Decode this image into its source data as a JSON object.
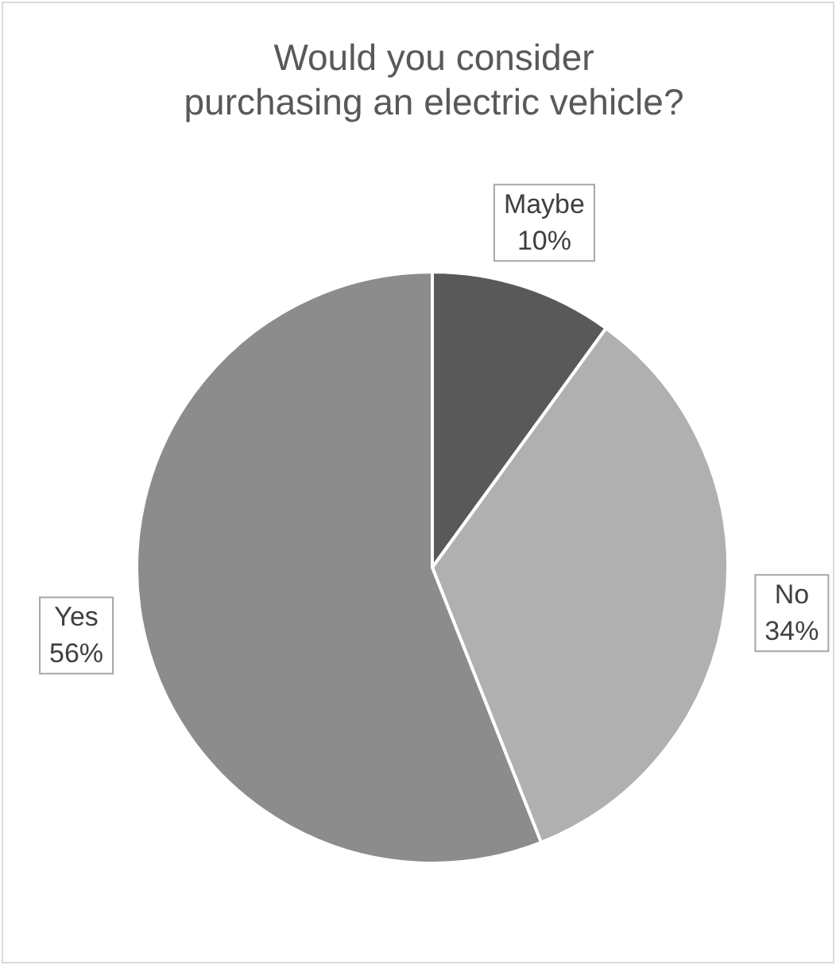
{
  "chart_data": {
    "type": "pie",
    "title": "Would you consider purchasing an electric vehicle?",
    "categories": [
      "Maybe",
      "No",
      "Yes"
    ],
    "values": [
      10,
      34,
      56
    ],
    "value_labels": [
      "10%",
      "34%",
      "56%"
    ],
    "colors": [
      "#595959",
      "#b0b0b0",
      "#8c8c8c"
    ],
    "legend": false
  }
}
